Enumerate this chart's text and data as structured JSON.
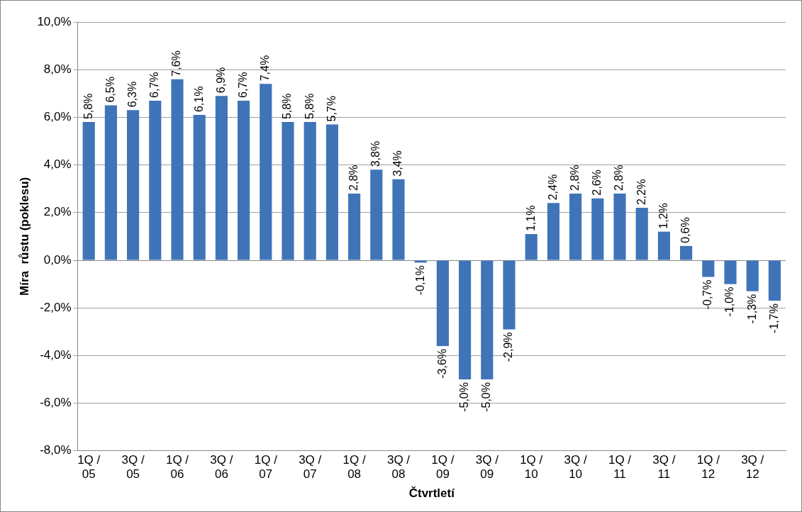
{
  "chart_data": {
    "type": "bar",
    "xlabel": "Čtvrtletí",
    "ylabel": "Míra  růstu (poklesu)",
    "categories": [
      "1Q / 05",
      null,
      "3Q / 05",
      null,
      "1Q / 06",
      null,
      "3Q / 06",
      null,
      "1Q / 07",
      null,
      "3Q / 07",
      null,
      "1Q / 08",
      null,
      "3Q / 08",
      null,
      "1Q / 09",
      null,
      "3Q / 09",
      null,
      "1Q / 10",
      null,
      "3Q / 10",
      null,
      "1Q / 11",
      null,
      "3Q / 11",
      null,
      "1Q / 12",
      null,
      "3Q / 12",
      null
    ],
    "values": [
      5.8,
      6.5,
      6.3,
      6.7,
      7.6,
      6.1,
      6.9,
      6.7,
      7.4,
      5.8,
      5.8,
      5.7,
      2.8,
      3.8,
      3.4,
      -0.1,
      -3.6,
      -5.0,
      -5.0,
      -2.9,
      1.1,
      2.4,
      2.8,
      2.6,
      2.8,
      2.2,
      1.2,
      0.6,
      -0.7,
      -1.0,
      -1.3,
      -1.7
    ],
    "value_labels": [
      "5,8%",
      "6,5%",
      "6,3%",
      "6,7%",
      "7,6%",
      "6,1%",
      "6,9%",
      "6,7%",
      "7,4%",
      "5,8%",
      "5,8%",
      "5,7%",
      "2,8%",
      "3,8%",
      "3,4%",
      "-0,1%",
      "-3,6%",
      "-5,0%",
      "-5,0%",
      "-2,9%",
      "1,1%",
      "2,4%",
      "2,8%",
      "2,6%",
      "2,8%",
      "2,2%",
      "1,2%",
      "0,6%",
      "-0,7%",
      "-1,0%",
      "-1,3%",
      "-1,7%"
    ],
    "color": "#3f74b8",
    "ylim": [
      -8,
      10
    ],
    "yticks": [
      {
        "value": -8,
        "label": "-8,0%"
      },
      {
        "value": -6,
        "label": "-6,0%"
      },
      {
        "value": -4,
        "label": "-4,0%"
      },
      {
        "value": -2,
        "label": "-2,0%"
      },
      {
        "value": 0,
        "label": "0,0%"
      },
      {
        "value": 2,
        "label": "2,0%"
      },
      {
        "value": 4,
        "label": "4,0%"
      },
      {
        "value": 6,
        "label": "6,0%"
      },
      {
        "value": 8,
        "label": "8,0%"
      },
      {
        "value": 10,
        "label": "10,0%"
      }
    ],
    "grid": "y",
    "legend": false
  }
}
